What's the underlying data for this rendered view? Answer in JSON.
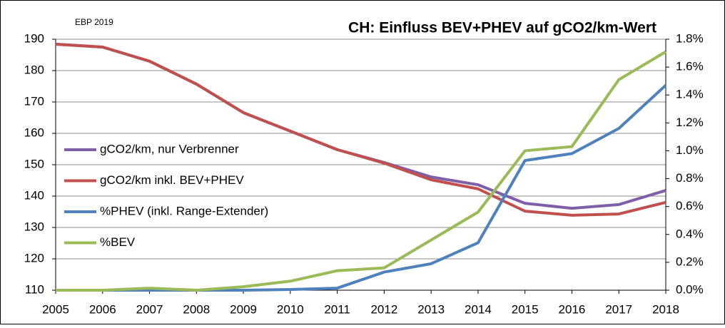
{
  "chart_data": {
    "type": "line",
    "title": "CH: Einfluss BEV+PHEV auf gCO2/km-Wert",
    "annotation": "EBP 2019",
    "categories": [
      "2005",
      "2006",
      "2007",
      "2008",
      "2009",
      "2010",
      "2011",
      "2012",
      "2013",
      "2014",
      "2015",
      "2016",
      "2017",
      "2018"
    ],
    "series": [
      {
        "name": "gCO2/km, nur Verbrenner",
        "color": "#7f5fa8",
        "values": [
          188.4,
          187.5,
          183,
          175.7,
          166.6,
          160.7,
          154.8,
          150.7,
          146.1,
          143.6,
          137.7,
          136.1,
          137.3,
          141.8
        ]
      },
      {
        "name": "gCO2/km inkl. BEV+PHEV",
        "color": "#c0504d",
        "values": [
          188.4,
          187.5,
          183,
          175.7,
          166.6,
          160.7,
          154.8,
          150.5,
          145.2,
          142.3,
          135.2,
          133.9,
          134.3,
          138
        ]
      },
      {
        "name": "%PHEV (inkl. Range-Extender)",
        "color": "#4f81bd",
        "axis": "y2",
        "values": [
          0,
          0,
          0,
          0,
          0,
          0.005,
          0.015,
          0.13,
          0.19,
          0.34,
          0.93,
          0.98,
          1.16,
          1.47
        ]
      },
      {
        "name": "%BEV",
        "color": "#9bbb59",
        "axis": "y2",
        "values": [
          0,
          0,
          0.015,
          0,
          0.025,
          0.065,
          0.14,
          0.16,
          0.36,
          0.56,
          1.0,
          1.03,
          1.51,
          1.71
        ]
      }
    ],
    "ylim": [
      110,
      190
    ],
    "yticks": [
      110,
      120,
      130,
      140,
      150,
      160,
      170,
      180,
      190
    ],
    "y2lim": [
      0,
      1.8
    ],
    "y2ticks": [
      {
        "value": 0,
        "label": "0.0%"
      },
      {
        "value": 0.2,
        "label": "0.2%"
      },
      {
        "value": 0.4,
        "label": "0.4%"
      },
      {
        "value": 0.6,
        "label": "0.6%"
      },
      {
        "value": 0.8,
        "label": "0.8%"
      },
      {
        "value": 1.0,
        "label": "1.0%"
      },
      {
        "value": 1.2,
        "label": "1.2%"
      },
      {
        "value": 1.4,
        "label": "1.4%"
      },
      {
        "value": 1.6,
        "label": "1.6%"
      },
      {
        "value": 1.8,
        "label": "1.8%"
      }
    ],
    "grid": true
  }
}
